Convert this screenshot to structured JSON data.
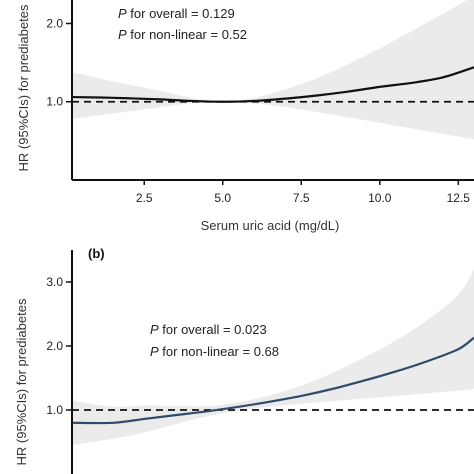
{
  "chart_data": [
    {
      "type": "line",
      "panel_label": "",
      "xlabel": "Serum uric acid (mg/dL)",
      "ylabel": "HR (95%CIs) for prediabetes",
      "x_ticks": [
        "2.5",
        "5.0",
        "7.5",
        "10.0",
        "12.5"
      ],
      "x_tick_values": [
        2.5,
        5.0,
        7.5,
        10.0,
        12.5
      ],
      "y_ticks": [
        "1.0",
        "2.0"
      ],
      "y_tick_values": [
        1.0,
        2.0
      ],
      "xlim": [
        0.2,
        13.0
      ],
      "ylim": [
        0.0,
        2.3
      ],
      "reference_line": 1.0,
      "annotations": [
        {
          "p": "P",
          "text": " for overall = 0.129"
        },
        {
          "p": "P",
          "text": " for non-linear = 0.52"
        }
      ],
      "series": [
        {
          "color": "#111111",
          "x": [
            0.2,
            1.5,
            3.0,
            4.0,
            5.0,
            6.0,
            7.0,
            8.0,
            9.0,
            10.0,
            11.0,
            12.0,
            13.0
          ],
          "y": [
            1.06,
            1.05,
            1.03,
            1.01,
            1.0,
            1.01,
            1.04,
            1.08,
            1.13,
            1.19,
            1.24,
            1.31,
            1.44
          ],
          "ci_lower": [
            0.78,
            0.85,
            0.93,
            0.98,
            1.0,
            0.98,
            0.93,
            0.87,
            0.8,
            0.73,
            0.66,
            0.59,
            0.52
          ],
          "ci_upper": [
            1.38,
            1.26,
            1.14,
            1.05,
            1.0,
            1.05,
            1.16,
            1.3,
            1.48,
            1.68,
            1.9,
            2.12,
            2.35
          ]
        }
      ]
    },
    {
      "type": "line",
      "panel_label": "(b)",
      "xlabel": "",
      "ylabel": "HR (95%CIs) for prediabetes",
      "x_ticks": [],
      "y_ticks": [
        "1.0",
        "2.0",
        "3.0"
      ],
      "y_tick_values": [
        1.0,
        2.0,
        3.0
      ],
      "xlim": [
        0.2,
        13.0
      ],
      "ylim": [
        0.0,
        3.5
      ],
      "reference_line": 1.0,
      "annotations": [
        {
          "p": "P",
          "text": " for overall = 0.023"
        },
        {
          "p": "P",
          "text": " for non-linear = 0.68"
        }
      ],
      "series": [
        {
          "color": "#2f4a6b",
          "x": [
            0.2,
            1.5,
            2.5,
            3.5,
            4.5,
            5.5,
            6.5,
            7.5,
            8.5,
            9.5,
            10.5,
            11.5,
            12.5,
            13.0
          ],
          "y": [
            0.8,
            0.8,
            0.86,
            0.92,
            0.98,
            1.05,
            1.13,
            1.22,
            1.33,
            1.46,
            1.6,
            1.76,
            1.95,
            2.13
          ],
          "ci_lower": [
            0.45,
            0.55,
            0.65,
            0.78,
            0.9,
            0.99,
            1.05,
            1.1,
            1.14,
            1.18,
            1.22,
            1.26,
            1.3,
            1.33
          ],
          "ci_upper": [
            1.15,
            1.05,
            1.07,
            1.06,
            1.06,
            1.12,
            1.23,
            1.38,
            1.58,
            1.82,
            2.08,
            2.4,
            2.8,
            3.2
          ]
        }
      ]
    }
  ]
}
